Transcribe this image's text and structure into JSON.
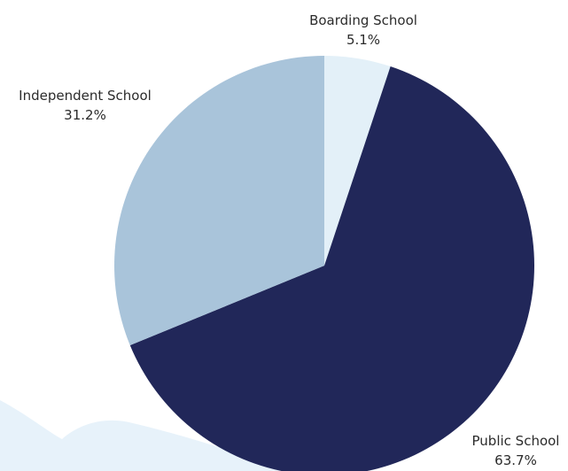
{
  "chart_data": {
    "type": "pie",
    "title": "",
    "start_angle_deg": 0,
    "direction": "clockwise",
    "slices": [
      {
        "label": "Boarding School",
        "value": 5.1,
        "display": "5.1%",
        "color": "#e3f0f8"
      },
      {
        "label": "Public School",
        "value": 63.7,
        "display": "63.7%",
        "color": "#212759"
      },
      {
        "label": "Independent School",
        "value": 31.2,
        "display": "31.2%",
        "color": "#a9c4da"
      }
    ],
    "legend": "none",
    "labels": "outside"
  },
  "colors": {
    "background": "#ffffff",
    "wave": "#e7f2fa",
    "label_text": "#2b2b2b"
  }
}
